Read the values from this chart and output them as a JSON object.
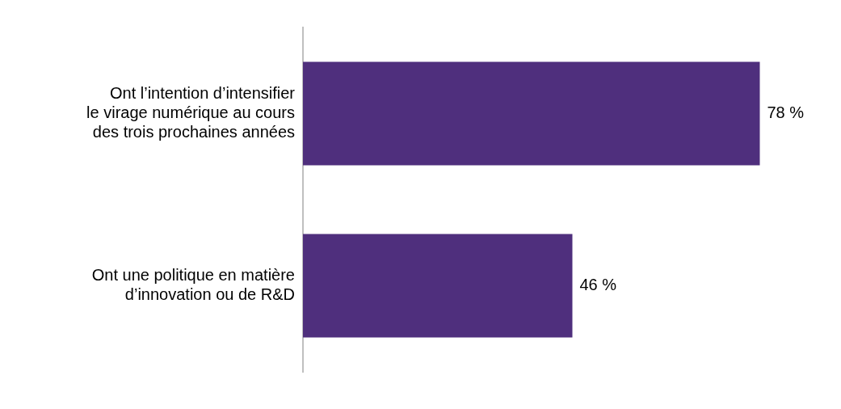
{
  "chart_data": {
    "type": "bar",
    "orientation": "horizontal",
    "categories": [
      "Ont l’intention d’intensifier\nle virage numérique au cours\ndes trois prochaines années",
      "Ont une politique en matière\nd’innovation ou de R&D"
    ],
    "values": [
      78,
      46
    ],
    "value_labels": [
      "78 %",
      "46 %"
    ],
    "color": "#4f2f7d",
    "tick_labels": "y"
  }
}
